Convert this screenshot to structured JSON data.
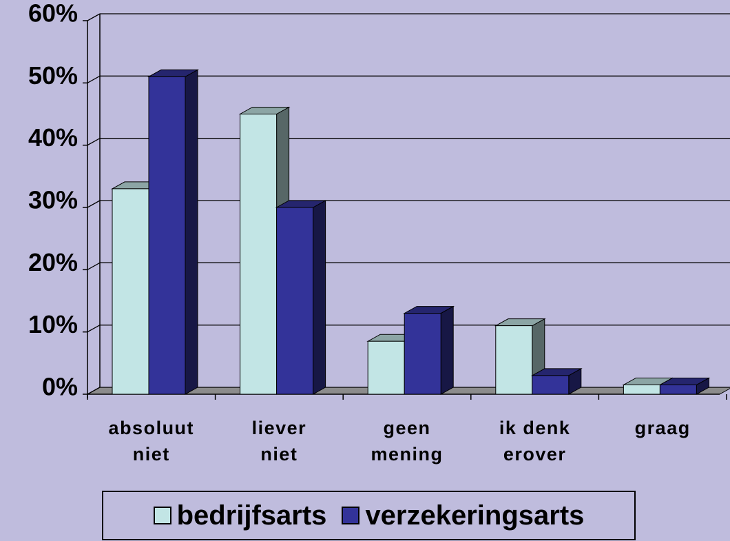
{
  "chart_data": {
    "type": "bar3d",
    "categories": [
      "absoluut niet",
      "liever niet",
      "geen mening",
      "ik denk erover",
      "graag"
    ],
    "series": [
      {
        "name": "bedrijfsarts",
        "color": "#c2e5e5",
        "values": [
          33,
          45,
          8.5,
          11,
          1.5
        ]
      },
      {
        "name": "verzekeringsarts",
        "color": "#333399",
        "values": [
          51,
          30,
          13,
          3,
          1.5
        ]
      }
    ],
    "ylim": [
      0,
      60
    ],
    "yticks": [
      {
        "value": 0,
        "label": "0%"
      },
      {
        "value": 10,
        "label": "10%"
      },
      {
        "value": 20,
        "label": "20%"
      },
      {
        "value": 30,
        "label": "30%"
      },
      {
        "value": 40,
        "label": "40%"
      },
      {
        "value": 50,
        "label": "50%"
      },
      {
        "value": 60,
        "label": "60%"
      }
    ],
    "grid": true
  }
}
